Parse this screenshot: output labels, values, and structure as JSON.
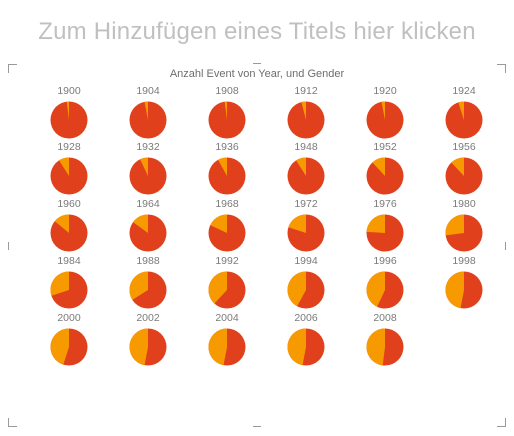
{
  "slide": {
    "title_placeholder": "Zum Hinzufügen eines Titels hier klicken"
  },
  "chart_data": {
    "type": "pie",
    "title": "Anzahl Event von Year, und Gender",
    "colors": {
      "men": "#e0401b",
      "women": "#f79a00"
    },
    "pies": [
      {
        "year": "1900",
        "women_share": 0.02
      },
      {
        "year": "1904",
        "women_share": 0.03
      },
      {
        "year": "1908",
        "women_share": 0.02
      },
      {
        "year": "1912",
        "women_share": 0.04
      },
      {
        "year": "1920",
        "women_share": 0.03
      },
      {
        "year": "1924",
        "women_share": 0.05
      },
      {
        "year": "1928",
        "women_share": 0.09
      },
      {
        "year": "1932",
        "women_share": 0.07
      },
      {
        "year": "1936",
        "women_share": 0.08
      },
      {
        "year": "1948",
        "women_share": 0.09
      },
      {
        "year": "1952",
        "women_share": 0.12
      },
      {
        "year": "1956",
        "women_share": 0.12
      },
      {
        "year": "1960",
        "women_share": 0.14
      },
      {
        "year": "1964",
        "women_share": 0.15
      },
      {
        "year": "1968",
        "women_share": 0.18
      },
      {
        "year": "1972",
        "women_share": 0.2
      },
      {
        "year": "1976",
        "women_share": 0.24
      },
      {
        "year": "1980",
        "women_share": 0.27
      },
      {
        "year": "1984",
        "women_share": 0.3
      },
      {
        "year": "1988",
        "women_share": 0.34
      },
      {
        "year": "1992",
        "women_share": 0.38
      },
      {
        "year": "1994",
        "women_share": 0.42
      },
      {
        "year": "1996",
        "women_share": 0.43
      },
      {
        "year": "1998",
        "women_share": 0.47
      },
      {
        "year": "2000",
        "women_share": 0.45
      },
      {
        "year": "2002",
        "women_share": 0.47
      },
      {
        "year": "2004",
        "women_share": 0.47
      },
      {
        "year": "2006",
        "women_share": 0.47
      },
      {
        "year": "2008",
        "women_share": 0.48
      }
    ]
  }
}
